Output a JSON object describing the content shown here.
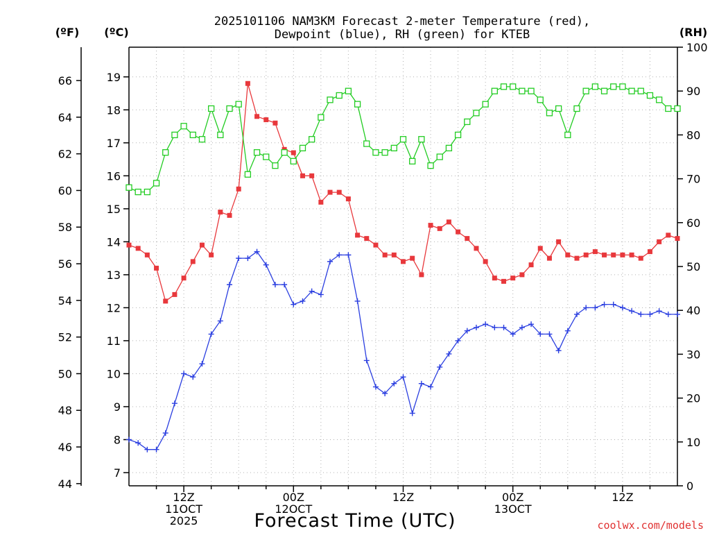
{
  "chart_data": {
    "type": "line",
    "title_line1": "2025101106 NAM3KM Forecast 2-meter Temperature (red),",
    "title_line2": "Dewpoint (blue), RH (green) for KTEB",
    "xlabel": "Forecast Time (UTC)",
    "credit": "coolwx.com/models",
    "units": {
      "fahrenheit": "(ºF)",
      "celsius": "(ºC)",
      "rh": "(RH)"
    },
    "x_range_hours": [
      6,
      66
    ],
    "celsius_range": [
      6.6,
      19.9
    ],
    "celsius_ticks": [
      7,
      8,
      9,
      10,
      11,
      12,
      13,
      14,
      15,
      16,
      17,
      18,
      19
    ],
    "fahrenheit_ticks": [
      44,
      46,
      48,
      50,
      52,
      54,
      56,
      58,
      60,
      62,
      64,
      66
    ],
    "rh_range": [
      0,
      100
    ],
    "rh_ticks": [
      0,
      10,
      20,
      30,
      40,
      50,
      60,
      70,
      80,
      90,
      100
    ],
    "x_ticks": [
      {
        "hour": 12,
        "lines": [
          "12Z",
          "11OCT",
          "2025"
        ]
      },
      {
        "hour": 24,
        "lines": [
          "00Z",
          "12OCT"
        ]
      },
      {
        "hour": 36,
        "lines": [
          "12Z"
        ]
      },
      {
        "hour": 48,
        "lines": [
          "00Z",
          "13OCT"
        ]
      },
      {
        "hour": 60,
        "lines": [
          "12Z"
        ]
      }
    ],
    "series": [
      {
        "name": "Temperature",
        "axis": "celsius",
        "color": "#e8383c",
        "marker": "filled-square",
        "values": [
          13.9,
          13.8,
          13.6,
          13.2,
          12.2,
          12.4,
          12.9,
          13.4,
          13.9,
          13.6,
          14.9,
          14.8,
          15.6,
          18.8,
          17.8,
          17.7,
          17.6,
          16.8,
          16.7,
          16.0,
          16.0,
          15.2,
          15.5,
          15.5,
          15.3,
          14.2,
          14.1,
          13.9,
          13.6,
          13.6,
          13.4,
          13.5,
          13.0,
          14.5,
          14.4,
          14.6,
          14.3,
          14.1,
          13.8,
          13.4,
          12.9,
          12.8,
          12.9,
          13.0,
          13.3,
          13.8,
          13.5,
          14.0,
          13.6,
          13.5,
          13.6,
          13.7,
          13.6,
          13.6,
          13.6,
          13.6,
          13.5,
          13.7,
          14.0,
          14.2,
          14.1
        ]
      },
      {
        "name": "Dewpoint",
        "axis": "celsius",
        "color": "#2a3ee0",
        "marker": "plus",
        "values": [
          8.0,
          7.9,
          7.7,
          7.7,
          8.2,
          9.1,
          10.0,
          9.9,
          10.3,
          11.2,
          11.6,
          12.7,
          13.5,
          13.5,
          13.7,
          13.3,
          12.7,
          12.7,
          12.1,
          12.2,
          12.5,
          12.4,
          13.4,
          13.6,
          13.6,
          12.2,
          10.4,
          9.6,
          9.4,
          9.7,
          9.9,
          8.8,
          9.7,
          9.6,
          10.2,
          10.6,
          11.0,
          11.3,
          11.4,
          11.5,
          11.4,
          11.4,
          11.2,
          11.4,
          11.5,
          11.2,
          11.2,
          10.7,
          11.3,
          11.8,
          12.0,
          12.0,
          12.1,
          12.1,
          12.0,
          11.9,
          11.8,
          11.8,
          11.9,
          11.8,
          11.8
        ]
      },
      {
        "name": "RH",
        "axis": "rh",
        "color": "#22cc22",
        "marker": "open-square",
        "values": [
          68,
          67,
          67,
          69,
          76,
          80,
          82,
          80,
          79,
          86,
          80,
          86,
          87,
          71,
          76,
          75,
          73,
          76,
          74,
          77,
          79,
          84,
          88,
          89,
          90,
          87,
          78,
          76,
          76,
          77,
          79,
          74,
          79,
          73,
          75,
          77,
          80,
          83,
          85,
          87,
          90,
          91,
          91,
          90,
          90,
          88,
          85,
          86,
          80,
          86,
          90,
          91,
          90,
          91,
          91,
          90,
          90,
          89,
          88,
          86,
          86
        ]
      }
    ]
  }
}
